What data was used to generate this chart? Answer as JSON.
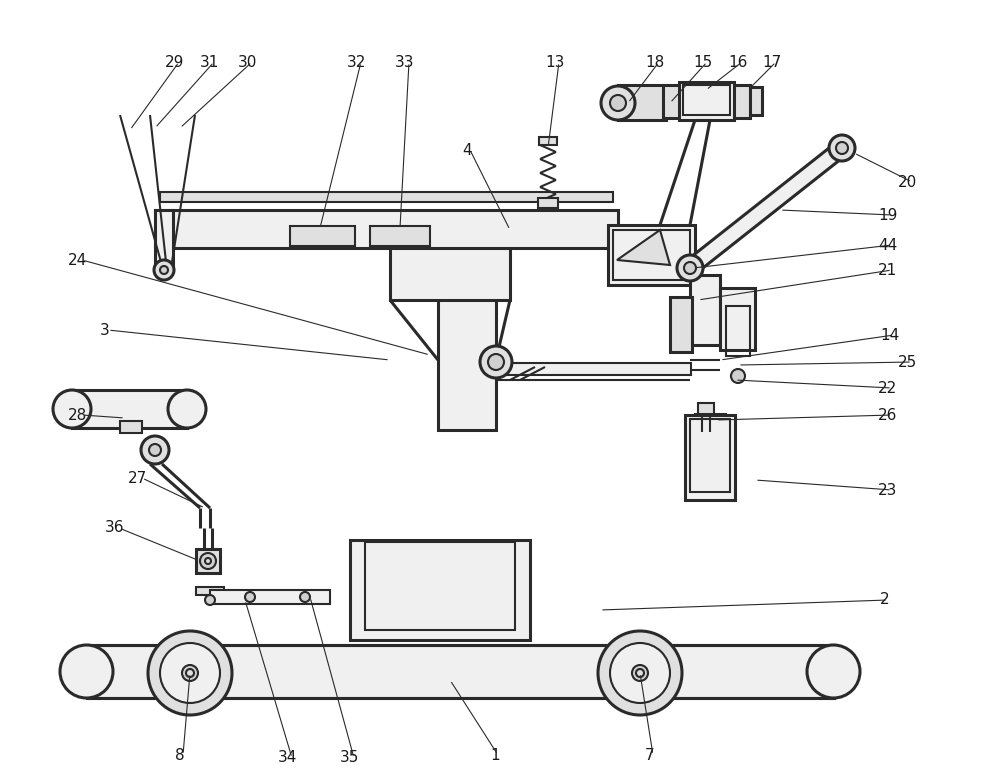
{
  "bg_color": "#ffffff",
  "line_color": "#2a2a2a",
  "lw": 1.5,
  "tlw": 2.2,
  "fs": 11,
  "lc": "#1a1a1a",
  "gray1": "#f0f0f0",
  "gray2": "#e0e0e0",
  "gray3": "#d0d0d0",
  "gray4": "#c8c8c8"
}
